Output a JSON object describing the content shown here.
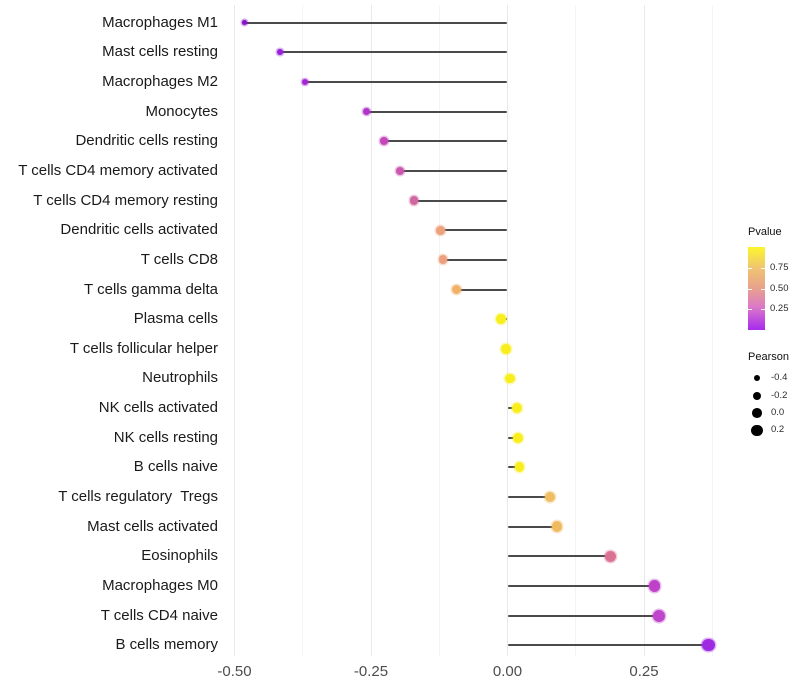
{
  "chart_data": {
    "type": "scatter",
    "variant": "lollipop",
    "title": "",
    "xlabel": "",
    "ylabel": "",
    "xlim": [
      -0.52,
      0.385
    ],
    "grid": "vertical major+minor, light gray, no axis lines",
    "x_ticks": [
      {
        "value": -0.5,
        "label": "-0.50"
      },
      {
        "value": -0.25,
        "label": "-0.25"
      },
      {
        "value": 0.0,
        "label": "0.00"
      },
      {
        "value": 0.25,
        "label": "0.25"
      }
    ],
    "x_minor_ticks": [
      -0.375,
      -0.125,
      0.125,
      0.375
    ],
    "stem_color": "#4a4a4a",
    "points": [
      {
        "label": "Macrophages M1",
        "pearson": -0.481,
        "color": "#8912CB"
      },
      {
        "label": "Mast cells resting",
        "pearson": -0.417,
        "color": "#9922D9"
      },
      {
        "label": "Macrophages M2",
        "pearson": -0.371,
        "color": "#A327D7"
      },
      {
        "label": "Monocytes",
        "pearson": -0.258,
        "color": "#B334CC"
      },
      {
        "label": "Dendritic cells resting",
        "pearson": -0.226,
        "color": "#C247BA"
      },
      {
        "label": "T cells CD4 memory activated",
        "pearson": -0.197,
        "color": "#CA57AF"
      },
      {
        "label": "T cells CD4 memory resting",
        "pearson": -0.171,
        "color": "#D068A0"
      },
      {
        "label": "Dendritic cells activated",
        "pearson": -0.122,
        "color": "#EDA17D"
      },
      {
        "label": "T cells CD8",
        "pearson": -0.118,
        "color": "#EDA07E"
      },
      {
        "label": "T cells gamma delta",
        "pearson": -0.094,
        "color": "#F1B169"
      },
      {
        "label": "Plasma cells",
        "pearson": -0.012,
        "color": "#F8EE1E"
      },
      {
        "label": "T cells follicular helper",
        "pearson": -0.003,
        "color": "#F8EE1E"
      },
      {
        "label": "Neutrophils",
        "pearson": 0.004,
        "color": "#F8EE1E"
      },
      {
        "label": "NK cells activated",
        "pearson": 0.018,
        "color": "#F8EE1E"
      },
      {
        "label": "NK cells resting",
        "pearson": 0.02,
        "color": "#F8EE1E"
      },
      {
        "label": "B cells naive",
        "pearson": 0.022,
        "color": "#F8EE1E"
      },
      {
        "label": "T cells regulatory  Tregs",
        "pearson": 0.078,
        "color": "#EFBD62"
      },
      {
        "label": "Mast cells activated",
        "pearson": 0.091,
        "color": "#F0BA60"
      },
      {
        "label": "Eosinophils",
        "pearson": 0.188,
        "color": "#DB7294"
      },
      {
        "label": "Macrophages M0",
        "pearson": 0.269,
        "color": "#BE41C8"
      },
      {
        "label": "T cells CD4 naive",
        "pearson": 0.277,
        "color": "#BF45CC"
      },
      {
        "label": "B cells memory",
        "pearson": 0.368,
        "color": "#9E2BE2"
      }
    ],
    "legend": {
      "pvalue": {
        "title": "Pvalue",
        "bar_range": [
          0,
          1
        ],
        "tick_labels": [
          {
            "value": 0.75,
            "label": "0.75"
          },
          {
            "value": 0.5,
            "label": "0.50"
          },
          {
            "value": 0.25,
            "label": "0.25"
          }
        ],
        "gradient_stops": [
          {
            "p": 1.0,
            "color": "#FDF52B"
          },
          {
            "p": 0.75,
            "color": "#F0C571"
          },
          {
            "p": 0.5,
            "color": "#E7A18C"
          },
          {
            "p": 0.28,
            "color": "#DC79C8"
          },
          {
            "p": 0.0,
            "color": "#A62BEE"
          }
        ]
      },
      "pearson": {
        "title": "Pearson",
        "entries": [
          {
            "value": -0.4,
            "label": "-0.4"
          },
          {
            "value": -0.2,
            "label": "-0.2"
          },
          {
            "value": 0.0,
            "label": "0.0"
          },
          {
            "value": 0.2,
            "label": "0.2"
          }
        ]
      }
    }
  }
}
